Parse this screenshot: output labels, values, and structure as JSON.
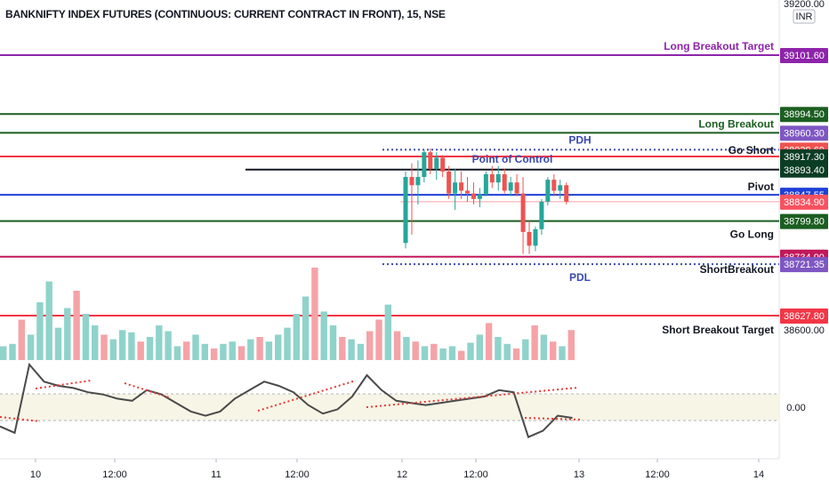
{
  "header": {
    "title": "BANKNIFTY INDEX FUTURES (CONTINUOUS: CURRENT CONTRACT IN FRONT), 15, NSE"
  },
  "price_axis": {
    "top_label": "39200.00",
    "currency": "INR",
    "grid_label": "38600.00",
    "osc_label": "0.00"
  },
  "time_axis": {
    "labels": [
      "10",
      "12:00",
      "11",
      "12:00",
      "12",
      "12:00",
      "13",
      "12:00",
      "14"
    ]
  },
  "levels": [
    {
      "name": "Long Breakout Target",
      "value": 39101.6,
      "tag": "39101.60",
      "color": "#8e24aa",
      "tag_color": "#8e24aa"
    },
    {
      "name": "",
      "value": 38994.5,
      "tag": "38994.50",
      "color": "#1b5e20",
      "tag_color": "#1b5e20"
    },
    {
      "name": "Long Breakout",
      "value": 38960.3,
      "tag": "38960.30",
      "color": "#1b5e20",
      "tag_color": "#7e57c2"
    },
    {
      "name": "PDH",
      "value": 38929.6,
      "tag": "38929.60",
      "color": "#3949ab",
      "tag_color": "#ef5350"
    },
    {
      "name": "Go Short",
      "value": 38917.3,
      "tag": "38917.30",
      "color": "#f23645",
      "tag_color": "#0b3d24"
    },
    {
      "name": "Point of Control",
      "value": 38893.4,
      "tag": "38893.40",
      "color": "#131722",
      "tag_color": "#0b3d24"
    },
    {
      "name": "Pivot",
      "value": 38847.55,
      "tag": "38847.55",
      "color": "#1e3fd6",
      "tag_color": "#1e3fd6"
    },
    {
      "name": "",
      "value": 38834.9,
      "tag": "38834.90",
      "color": "#f7525f",
      "tag_color": "#f7525f"
    },
    {
      "name": "Go Long",
      "value": 38799.8,
      "tag": "38799.80",
      "color": "#1b5e20",
      "tag_color": "#1b5e20"
    },
    {
      "name": "ShortBreakout",
      "value": 38734.9,
      "tag": "38734.90",
      "color": "#c2185b",
      "tag_color": "#c2185b"
    },
    {
      "name": "PDL",
      "value": 38721.35,
      "tag": "38721.35",
      "color": "#3949ab",
      "tag_color": "#7e57c2"
    },
    {
      "name": "Short Breakout Target",
      "value": 38627.8,
      "tag": "38627.80",
      "color": "#f23645",
      "tag_color": "#f23645"
    }
  ],
  "chart_data": {
    "type": "candlestick",
    "candles": [
      {
        "o": 38760,
        "h": 38890,
        "l": 38750,
        "c": 38880
      },
      {
        "o": 38880,
        "h": 38905,
        "l": 38775,
        "c": 38865
      },
      {
        "o": 38865,
        "h": 38910,
        "l": 38830,
        "c": 38880
      },
      {
        "o": 38880,
        "h": 38930,
        "l": 38870,
        "c": 38925
      },
      {
        "o": 38925,
        "h": 38932,
        "l": 38885,
        "c": 38895
      },
      {
        "o": 38895,
        "h": 38925,
        "l": 38875,
        "c": 38915
      },
      {
        "o": 38915,
        "h": 38920,
        "l": 38880,
        "c": 38890
      },
      {
        "o": 38890,
        "h": 38900,
        "l": 38840,
        "c": 38850
      },
      {
        "o": 38850,
        "h": 38895,
        "l": 38820,
        "c": 38870
      },
      {
        "o": 38870,
        "h": 38890,
        "l": 38840,
        "c": 38855
      },
      {
        "o": 38855,
        "h": 38880,
        "l": 38835,
        "c": 38850
      },
      {
        "o": 38850,
        "h": 38870,
        "l": 38830,
        "c": 38840
      },
      {
        "o": 38840,
        "h": 38860,
        "l": 38825,
        "c": 38848
      },
      {
        "o": 38848,
        "h": 38890,
        "l": 38845,
        "c": 38885
      },
      {
        "o": 38885,
        "h": 38900,
        "l": 38860,
        "c": 38870
      },
      {
        "o": 38870,
        "h": 38900,
        "l": 38855,
        "c": 38885
      },
      {
        "o": 38885,
        "h": 38895,
        "l": 38850,
        "c": 38855
      },
      {
        "o": 38855,
        "h": 38880,
        "l": 38845,
        "c": 38870
      },
      {
        "o": 38870,
        "h": 38885,
        "l": 38845,
        "c": 38850
      },
      {
        "o": 38850,
        "h": 38880,
        "l": 38740,
        "c": 38780
      },
      {
        "o": 38780,
        "h": 38800,
        "l": 38740,
        "c": 38755
      },
      {
        "o": 38755,
        "h": 38790,
        "l": 38745,
        "c": 38785
      },
      {
        "o": 38785,
        "h": 38840,
        "l": 38775,
        "c": 38835
      },
      {
        "o": 38835,
        "h": 38880,
        "l": 38828,
        "c": 38875
      },
      {
        "o": 38875,
        "h": 38885,
        "l": 38845,
        "c": 38855
      },
      {
        "o": 38855,
        "h": 38875,
        "l": 38840,
        "c": 38865
      },
      {
        "o": 38865,
        "h": 38870,
        "l": 38830,
        "c": 38835
      }
    ],
    "volume": [
      {
        "v": 12,
        "up": true
      },
      {
        "v": 14,
        "up": true
      },
      {
        "v": 35,
        "up": false
      },
      {
        "v": 22,
        "up": true
      },
      {
        "v": 50,
        "up": true
      },
      {
        "v": 68,
        "up": true
      },
      {
        "v": 28,
        "up": true
      },
      {
        "v": 45,
        "up": true
      },
      {
        "v": 60,
        "up": false
      },
      {
        "v": 40,
        "up": true
      },
      {
        "v": 30,
        "up": true
      },
      {
        "v": 22,
        "up": false
      },
      {
        "v": 18,
        "up": true
      },
      {
        "v": 26,
        "up": true
      },
      {
        "v": 24,
        "up": true
      },
      {
        "v": 16,
        "up": false
      },
      {
        "v": 20,
        "up": true
      },
      {
        "v": 30,
        "up": true
      },
      {
        "v": 25,
        "up": true
      },
      {
        "v": 12,
        "up": true
      },
      {
        "v": 16,
        "up": false
      },
      {
        "v": 22,
        "up": true
      },
      {
        "v": 14,
        "up": true
      },
      {
        "v": 10,
        "up": false
      },
      {
        "v": 14,
        "up": true
      },
      {
        "v": 16,
        "up": true
      },
      {
        "v": 12,
        "up": false
      },
      {
        "v": 18,
        "up": true
      },
      {
        "v": 20,
        "up": false
      },
      {
        "v": 16,
        "up": true
      },
      {
        "v": 22,
        "up": true
      },
      {
        "v": 28,
        "up": true
      },
      {
        "v": 40,
        "up": true
      },
      {
        "v": 55,
        "up": true
      },
      {
        "v": 80,
        "up": false
      },
      {
        "v": 42,
        "up": true
      },
      {
        "v": 30,
        "up": true
      },
      {
        "v": 20,
        "up": false
      },
      {
        "v": 18,
        "up": true
      },
      {
        "v": 14,
        "up": true
      },
      {
        "v": 25,
        "up": false
      },
      {
        "v": 35,
        "up": false
      },
      {
        "v": 48,
        "up": true
      },
      {
        "v": 25,
        "up": false
      },
      {
        "v": 20,
        "up": true
      },
      {
        "v": 16,
        "up": false
      },
      {
        "v": 12,
        "up": true
      },
      {
        "v": 14,
        "up": false
      },
      {
        "v": 10,
        "up": true
      },
      {
        "v": 12,
        "up": true
      },
      {
        "v": 8,
        "up": false
      },
      {
        "v": 15,
        "up": true
      },
      {
        "v": 22,
        "up": true
      },
      {
        "v": 32,
        "up": false
      },
      {
        "v": 20,
        "up": true
      },
      {
        "v": 14,
        "up": true
      },
      {
        "v": 10,
        "up": false
      },
      {
        "v": 18,
        "up": true
      },
      {
        "v": 30,
        "up": false
      },
      {
        "v": 22,
        "up": true
      },
      {
        "v": 16,
        "up": false
      },
      {
        "v": 12,
        "up": true
      },
      {
        "v": 26,
        "up": false
      }
    ],
    "oscillator": [
      -0.9,
      -1.2,
      2.0,
      1.2,
      1.0,
      0.9,
      0.7,
      0.6,
      0.4,
      0.3,
      0.8,
      0.6,
      0.2,
      -0.2,
      -0.4,
      -0.2,
      0.4,
      0.8,
      1.2,
      1.0,
      0.7,
      0.1,
      -0.3,
      -0.1,
      0.5,
      1.5,
      0.8,
      0.3,
      0.2,
      0.1,
      0.2,
      0.3,
      0.4,
      0.5,
      0.8,
      0.7,
      -1.4,
      -1.1,
      -0.4,
      -0.5
    ],
    "oscillator_zero": 0.0
  }
}
